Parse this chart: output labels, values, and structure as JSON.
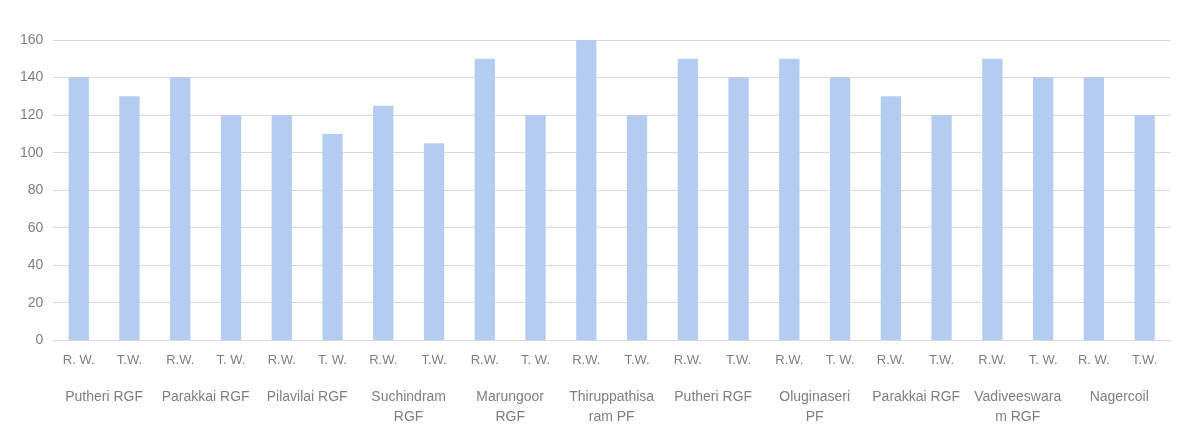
{
  "chart_data": {
    "type": "bar",
    "categories": [
      "R. W.",
      "T.W.",
      "R.W.",
      "T. W.",
      "R.W.",
      "T. W.",
      "R.W.",
      "T.W.",
      "R.W.",
      "T. W.",
      "R.W.",
      "T.W.",
      "R.W.",
      "T.W.",
      "R.W.",
      "T. W.",
      "R.W.",
      "T.W.",
      "R.W.",
      "T. W.",
      "R. W.",
      "T.W."
    ],
    "values": [
      140,
      130,
      140,
      120,
      120,
      110,
      125,
      105,
      150,
      120,
      160,
      120,
      150,
      140,
      150,
      140,
      130,
      120,
      150,
      140,
      140,
      120
    ],
    "color": "#b4ccf0",
    "ylim": [
      0,
      160
    ],
    "yticks": [
      0,
      20,
      40,
      60,
      80,
      100,
      120,
      140,
      160
    ],
    "grid": "y",
    "legend": false,
    "annotations": [
      "Putheri RGF",
      "Parakkai RGF",
      "Pilavilai RGF",
      "Suchindram RGF",
      "Marungoor RGF",
      "Thiruppathisaram PF",
      "Putheri RGF",
      "Oluginaseri PF",
      "Parakkai RGF",
      "Vadiveeswaram RGF",
      "Nagercoil"
    ]
  }
}
